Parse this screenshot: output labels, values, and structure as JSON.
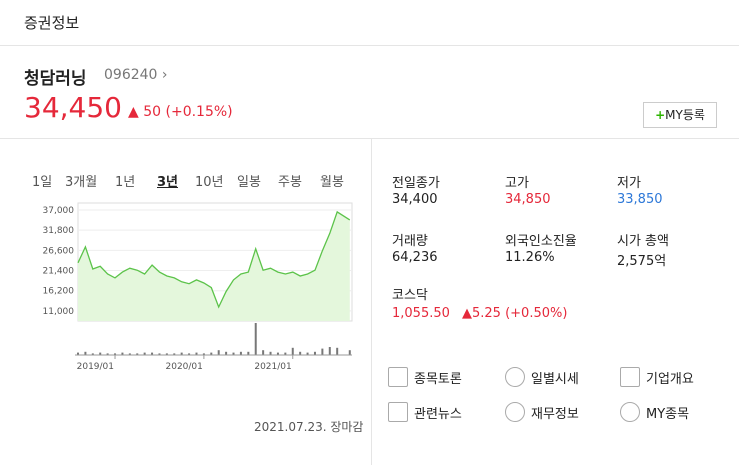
{
  "header": {
    "title": "증권정보"
  },
  "stock": {
    "name": "청담러닝",
    "code": "096240",
    "price": "34,450",
    "change": "50",
    "change_pct": "(+0.15%)",
    "my_button": "MY등록"
  },
  "tabs": {
    "items": [
      "1일",
      "3개월",
      "1년",
      "3년",
      "10년",
      "일봉",
      "주봉",
      "월봉"
    ],
    "active": 3
  },
  "chart": {
    "type": "area",
    "color": "#5cc34a",
    "x": [
      0,
      1,
      2,
      3,
      4,
      5,
      6,
      7,
      8,
      9,
      10,
      11,
      12,
      13,
      14,
      15,
      16,
      17,
      18,
      19,
      20,
      21,
      22,
      23,
      24,
      25,
      26,
      27,
      28,
      29,
      30,
      31,
      32,
      33,
      34,
      35,
      36.7
    ],
    "values": [
      23400,
      27500,
      21800,
      22500,
      20500,
      19500,
      21000,
      22000,
      21500,
      20500,
      22800,
      21000,
      20000,
      19500,
      18500,
      18000,
      19000,
      18200,
      17000,
      12000,
      16000,
      19000,
      20500,
      21000,
      27000,
      21500,
      22000,
      21000,
      20500,
      21000,
      20000,
      20500,
      21500,
      26500,
      31000,
      36500,
      34450
    ],
    "volume": [
      3,
      4,
      2,
      3,
      2,
      2,
      3,
      2,
      2,
      3,
      3,
      2,
      2,
      2,
      3,
      2,
      3,
      2,
      3,
      6,
      4,
      3,
      4,
      4,
      40,
      6,
      4,
      3,
      3,
      9,
      4,
      3,
      4,
      8,
      10,
      9,
      6
    ],
    "xlim": [
      0,
      37
    ],
    "ylim": [
      8400,
      38800
    ],
    "xticks": [
      {
        "value": 5,
        "label": "2019/01"
      },
      {
        "value": 17,
        "label": "2020/01"
      },
      {
        "value": 29,
        "label": "2021/01"
      }
    ],
    "yticks": [
      {
        "value": 37000,
        "label": "37,000"
      },
      {
        "value": 31800,
        "label": "31,800"
      },
      {
        "value": 26600,
        "label": "26,600"
      },
      {
        "value": 21400,
        "label": "21,400"
      },
      {
        "value": 16200,
        "label": "16,200"
      },
      {
        "value": 11000,
        "label": "11,000"
      }
    ]
  },
  "timestamp": "2021.07.23. 장마감",
  "info": [
    {
      "label": "전일종가",
      "value": "34,400",
      "color": "#222"
    },
    {
      "label": "고가",
      "value": "34,850",
      "color": "#e5283a"
    },
    {
      "label": "저가",
      "value": "33,850",
      "color": "#2d78d8"
    },
    {
      "label": "거래량",
      "value": "64,236",
      "color": "#222"
    },
    {
      "label": "외국인소진율",
      "value": "11.26%",
      "color": "#222"
    },
    {
      "label": "시가 총액",
      "value": "2,575억",
      "color": "#222"
    }
  ],
  "index": {
    "label": "코스닥",
    "value": "1,055.50",
    "change": "5.25 (+0.50%)"
  },
  "links": [
    "종목토론",
    "일별시세",
    "기업개요",
    "관련뉴스",
    "재무정보",
    "MY종목"
  ]
}
